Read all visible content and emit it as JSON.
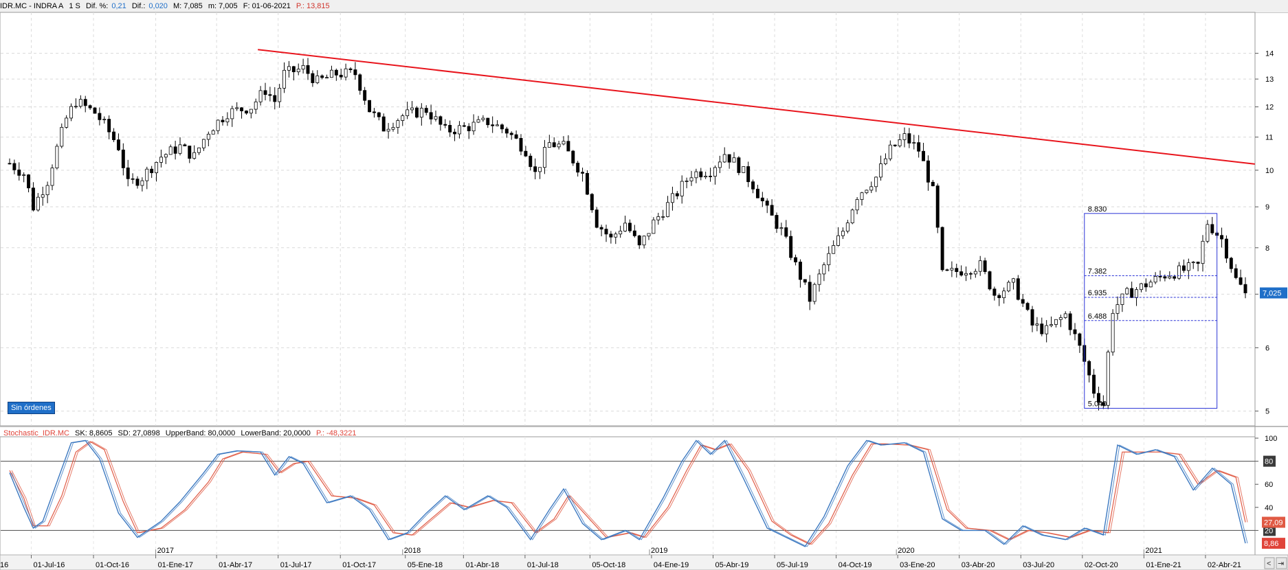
{
  "header": {
    "symbol": "IDR.MC - INDRA A",
    "timeframe": "1 S",
    "dif_pct_label": "Dif. %:",
    "dif_pct_value": "0,21",
    "dif_label": "Dif.:",
    "dif_value": "0,020",
    "max_text": "M: 7,085",
    "min_text": "m: 7,005",
    "date_text": "F: 01-06-2021",
    "p_text": "P.: 13,815"
  },
  "badge_text": "Sin órdenes",
  "indicator_header": {
    "name": "Stochastic_IDR.MC",
    "sk_text": "SK: 8,8605",
    "sd_text": "SD: 27,0898",
    "upper_text": "UpperBand: 80,0000",
    "lower_text": "LowerBand: 20,0000",
    "p_text": "P.: -48,3221"
  },
  "colors": {
    "up_candle": "#ffffff",
    "down_candle": "#000000",
    "trendline": "#e8141c",
    "fib": "#2b34d6",
    "stoch_sk": "#3b78c0",
    "stoch_sd": "#e05a44",
    "price_marker": "#1f6fc8"
  },
  "chart_data": [
    {
      "type": "candlestick",
      "y_scale": "log",
      "ylim": [
        4.85,
        15.2
      ],
      "y_ticks": [
        5,
        6,
        7,
        8,
        9,
        10,
        11,
        12,
        13,
        14
      ],
      "grid": true,
      "x_start": "2016-05-30",
      "x_end": "2021-05-31",
      "last_price_label": "7,025",
      "ohlc_path": [
        [
          "2016-05-30",
          10.2
        ],
        [
          "2016-06-20",
          9.9
        ],
        [
          "2016-07-04",
          9.0
        ],
        [
          "2016-07-25",
          9.7
        ],
        [
          "2016-08-22",
          11.6
        ],
        [
          "2016-09-05",
          12.2
        ],
        [
          "2016-10-03",
          11.8
        ],
        [
          "2016-10-17",
          11.4
        ],
        [
          "2016-11-07",
          10.7
        ],
        [
          "2016-11-21",
          9.6
        ],
        [
          "2016-12-12",
          9.8
        ],
        [
          "2017-01-09",
          10.4
        ],
        [
          "2017-02-06",
          10.7
        ],
        [
          "2017-02-27",
          10.4
        ],
        [
          "2017-03-20",
          11.2
        ],
        [
          "2017-04-17",
          11.8
        ],
        [
          "2017-05-22",
          12.0
        ],
        [
          "2017-06-12",
          12.6
        ],
        [
          "2017-06-26",
          12.2
        ],
        [
          "2017-07-10",
          13.2
        ],
        [
          "2017-08-07",
          13.4
        ],
        [
          "2017-08-28",
          12.9
        ],
        [
          "2017-09-25",
          13.2
        ],
        [
          "2017-10-23",
          13.2
        ],
        [
          "2017-11-13",
          11.9
        ],
        [
          "2017-12-04",
          11.3
        ],
        [
          "2018-01-01",
          11.7
        ],
        [
          "2018-02-05",
          11.9
        ],
        [
          "2018-03-05",
          11.2
        ],
        [
          "2018-04-02",
          11.3
        ],
        [
          "2018-05-07",
          11.5
        ],
        [
          "2018-06-04",
          11.2
        ],
        [
          "2018-07-02",
          10.6
        ],
        [
          "2018-07-16",
          9.9
        ],
        [
          "2018-08-06",
          10.8
        ],
        [
          "2018-08-27",
          10.7
        ],
        [
          "2018-09-24",
          9.9
        ],
        [
          "2018-10-15",
          8.6
        ],
        [
          "2018-11-05",
          8.2
        ],
        [
          "2018-11-26",
          8.6
        ],
        [
          "2018-12-17",
          8.0
        ],
        [
          "2019-01-07",
          8.6
        ],
        [
          "2019-02-04",
          9.2
        ],
        [
          "2019-03-04",
          9.9
        ],
        [
          "2019-04-01",
          10.0
        ],
        [
          "2019-04-22",
          10.5
        ],
        [
          "2019-05-13",
          10.1
        ],
        [
          "2019-06-03",
          9.6
        ],
        [
          "2019-06-24",
          8.9
        ],
        [
          "2019-07-15",
          8.4
        ],
        [
          "2019-08-05",
          7.6
        ],
        [
          "2019-08-26",
          6.9
        ],
        [
          "2019-09-16",
          7.6
        ],
        [
          "2019-10-14",
          8.4
        ],
        [
          "2019-11-04",
          9.3
        ],
        [
          "2019-12-02",
          9.8
        ],
        [
          "2019-12-23",
          10.6
        ],
        [
          "2020-01-13",
          11.0
        ],
        [
          "2020-02-03",
          10.6
        ],
        [
          "2020-02-24",
          9.4
        ],
        [
          "2020-03-09",
          7.4
        ],
        [
          "2020-04-06",
          7.5
        ],
        [
          "2020-05-04",
          7.6
        ],
        [
          "2020-05-25",
          7.0
        ],
        [
          "2020-06-22",
          7.2
        ],
        [
          "2020-07-20",
          6.4
        ],
        [
          "2020-08-10",
          6.3
        ],
        [
          "2020-09-07",
          6.6
        ],
        [
          "2020-09-28",
          6.0
        ],
        [
          "2020-10-19",
          5.3
        ],
        [
          "2020-11-02",
          5.1
        ],
        [
          "2020-11-16",
          6.7
        ],
        [
          "2020-12-07",
          7.0
        ],
        [
          "2021-01-04",
          7.2
        ],
        [
          "2021-02-01",
          7.4
        ],
        [
          "2021-03-01",
          7.5
        ],
        [
          "2021-03-22",
          7.6
        ],
        [
          "2021-04-05",
          8.6
        ],
        [
          "2021-04-26",
          8.2
        ],
        [
          "2021-05-17",
          7.3
        ],
        [
          "2021-05-31",
          7.025
        ]
      ],
      "trendline": {
        "from": [
          "2017-06-01",
          14.15
        ],
        "to": [
          "2021-06-14",
          10.18
        ]
      },
      "fib_box": {
        "from_date": "2020-10-05",
        "to_date": "2021-04-19",
        "high": 8.83,
        "low": 5.04,
        "levels": [
          {
            "value": 8.83,
            "label": "8.830"
          },
          {
            "value": 7.382,
            "label": "7.382"
          },
          {
            "value": 6.935,
            "label": "6.935"
          },
          {
            "value": 6.488,
            "label": "6.488"
          },
          {
            "value": 5.04,
            "label": "5.040"
          }
        ]
      },
      "x_ticks": [
        "16",
        "01-Jul-16",
        "01-Oct-16",
        "01-Ene-17",
        "01-Abr-17",
        "01-Jul-17",
        "01-Oct-17",
        "05-Ene-18",
        "01-Abr-18",
        "01-Jul-18",
        "05-Oct-18",
        "04-Ene-19",
        "05-Abr-19",
        "05-Jul-19",
        "04-Oct-19",
        "03-Ene-20",
        "03-Abr-20",
        "03-Jul-20",
        "02-Oct-20",
        "01-Ene-21",
        "02-Abr-21"
      ]
    },
    {
      "type": "line",
      "title": "Stochastic_IDR.MC",
      "ylim": [
        0,
        100
      ],
      "y_ticks": [
        20,
        40,
        60,
        80,
        100
      ],
      "bands": [
        80,
        20
      ],
      "year_labels": [
        {
          "date": "2017-01-01",
          "label": "2017"
        },
        {
          "date": "2018-01-01",
          "label": "2018"
        },
        {
          "date": "2019-01-01",
          "label": "2019"
        },
        {
          "date": "2020-01-01",
          "label": "2020"
        },
        {
          "date": "2021-01-01",
          "label": "2021"
        }
      ],
      "last_values": [
        {
          "value": 27.09,
          "label": "27,09",
          "series": "SD"
        },
        {
          "value": 8.86,
          "label": "8,86",
          "series": "SK"
        }
      ],
      "series": [
        {
          "name": "SK",
          "points": [
            [
              "2016-05-30",
              70
            ],
            [
              "2016-06-20",
              40
            ],
            [
              "2016-07-04",
              22
            ],
            [
              "2016-07-18",
              28
            ],
            [
              "2016-08-08",
              62
            ],
            [
              "2016-08-29",
              96
            ],
            [
              "2016-09-19",
              98
            ],
            [
              "2016-10-10",
              82
            ],
            [
              "2016-11-07",
              35
            ],
            [
              "2016-12-05",
              14
            ],
            [
              "2017-01-09",
              28
            ],
            [
              "2017-02-06",
              45
            ],
            [
              "2017-03-13",
              70
            ],
            [
              "2017-04-03",
              86
            ],
            [
              "2017-05-01",
              89
            ],
            [
              "2017-06-05",
              88
            ],
            [
              "2017-06-26",
              68
            ],
            [
              "2017-07-17",
              84
            ],
            [
              "2017-08-07",
              78
            ],
            [
              "2017-09-11",
              44
            ],
            [
              "2017-10-16",
              50
            ],
            [
              "2017-11-13",
              38
            ],
            [
              "2017-12-11",
              12
            ],
            [
              "2018-01-08",
              18
            ],
            [
              "2018-02-05",
              35
            ],
            [
              "2018-03-05",
              50
            ],
            [
              "2018-04-02",
              38
            ],
            [
              "2018-05-07",
              50
            ],
            [
              "2018-06-04",
              40
            ],
            [
              "2018-07-09",
              12
            ],
            [
              "2018-08-06",
              38
            ],
            [
              "2018-08-27",
              56
            ],
            [
              "2018-09-24",
              26
            ],
            [
              "2018-10-22",
              12
            ],
            [
              "2018-11-26",
              20
            ],
            [
              "2018-12-17",
              12
            ],
            [
              "2019-01-21",
              48
            ],
            [
              "2019-02-18",
              80
            ],
            [
              "2019-03-11",
              98
            ],
            [
              "2019-04-01",
              86
            ],
            [
              "2019-04-22",
              98
            ],
            [
              "2019-05-20",
              65
            ],
            [
              "2019-06-24",
              22
            ],
            [
              "2019-07-22",
              14
            ],
            [
              "2019-08-19",
              6
            ],
            [
              "2019-09-16",
              32
            ],
            [
              "2019-10-21",
              76
            ],
            [
              "2019-11-18",
              98
            ],
            [
              "2019-12-09",
              94
            ],
            [
              "2020-01-13",
              96
            ],
            [
              "2020-02-10",
              88
            ],
            [
              "2020-03-09",
              30
            ],
            [
              "2020-04-06",
              20
            ],
            [
              "2020-05-11",
              20
            ],
            [
              "2020-06-08",
              8
            ],
            [
              "2020-07-06",
              24
            ],
            [
              "2020-08-03",
              16
            ],
            [
              "2020-09-07",
              12
            ],
            [
              "2020-10-05",
              22
            ],
            [
              "2020-11-02",
              16
            ],
            [
              "2020-11-23",
              94
            ],
            [
              "2020-12-21",
              86
            ],
            [
              "2021-01-18",
              90
            ],
            [
              "2021-02-15",
              84
            ],
            [
              "2021-03-15",
              55
            ],
            [
              "2021-04-12",
              74
            ],
            [
              "2021-05-10",
              60
            ],
            [
              "2021-05-31",
              8.86
            ]
          ]
        },
        {
          "name": "SD",
          "points": [
            [
              "2016-05-30",
              72
            ],
            [
              "2016-06-20",
              48
            ],
            [
              "2016-07-04",
              24
            ],
            [
              "2016-07-25",
              24
            ],
            [
              "2016-08-15",
              50
            ],
            [
              "2016-09-05",
              88
            ],
            [
              "2016-09-26",
              97
            ],
            [
              "2016-10-17",
              90
            ],
            [
              "2016-11-14",
              45
            ],
            [
              "2016-12-05",
              18
            ],
            [
              "2017-01-09",
              22
            ],
            [
              "2017-02-13",
              38
            ],
            [
              "2017-03-20",
              62
            ],
            [
              "2017-04-10",
              82
            ],
            [
              "2017-05-08",
              88
            ],
            [
              "2017-06-12",
              86
            ],
            [
              "2017-07-03",
              70
            ],
            [
              "2017-07-24",
              78
            ],
            [
              "2017-08-14",
              80
            ],
            [
              "2017-09-18",
              50
            ],
            [
              "2017-10-23",
              48
            ],
            [
              "2017-11-20",
              42
            ],
            [
              "2017-12-18",
              18
            ],
            [
              "2018-01-15",
              16
            ],
            [
              "2018-02-12",
              30
            ],
            [
              "2018-03-12",
              44
            ],
            [
              "2018-04-09",
              40
            ],
            [
              "2018-05-14",
              46
            ],
            [
              "2018-06-11",
              44
            ],
            [
              "2018-07-16",
              18
            ],
            [
              "2018-08-13",
              30
            ],
            [
              "2018-09-03",
              50
            ],
            [
              "2018-10-01",
              32
            ],
            [
              "2018-10-29",
              14
            ],
            [
              "2018-12-03",
              18
            ],
            [
              "2018-12-24",
              14
            ],
            [
              "2019-01-28",
              40
            ],
            [
              "2019-02-25",
              72
            ],
            [
              "2019-03-18",
              94
            ],
            [
              "2019-04-08",
              90
            ],
            [
              "2019-04-29",
              95
            ],
            [
              "2019-05-27",
              72
            ],
            [
              "2019-07-01",
              28
            ],
            [
              "2019-07-29",
              16
            ],
            [
              "2019-08-26",
              8
            ],
            [
              "2019-09-23",
              26
            ],
            [
              "2019-10-28",
              68
            ],
            [
              "2019-11-25",
              95
            ],
            [
              "2019-12-16",
              95
            ],
            [
              "2020-01-20",
              94
            ],
            [
              "2020-02-17",
              90
            ],
            [
              "2020-03-16",
              38
            ],
            [
              "2020-04-13",
              22
            ],
            [
              "2020-05-18",
              20
            ],
            [
              "2020-06-15",
              12
            ],
            [
              "2020-07-13",
              20
            ],
            [
              "2020-08-10",
              18
            ],
            [
              "2020-09-14",
              14
            ],
            [
              "2020-10-12",
              20
            ],
            [
              "2020-11-09",
              18
            ],
            [
              "2020-11-30",
              88
            ],
            [
              "2020-12-28",
              88
            ],
            [
              "2021-01-25",
              88
            ],
            [
              "2021-02-22",
              86
            ],
            [
              "2021-03-22",
              60
            ],
            [
              "2021-04-19",
              72
            ],
            [
              "2021-05-17",
              66
            ],
            [
              "2021-05-31",
              27.09
            ]
          ]
        }
      ]
    }
  ]
}
